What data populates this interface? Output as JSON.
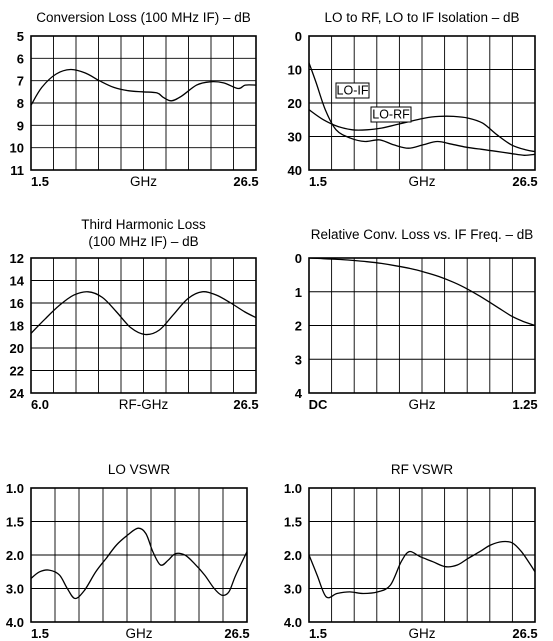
{
  "chart_data": [
    {
      "id": "conv-loss",
      "type": "line",
      "title": [
        "Conversion Loss (100 MHz IF) – dB"
      ],
      "x_tick_labels": [
        "1.5",
        "GHz",
        "26.5"
      ],
      "y_tick_labels": [
        "5",
        "6",
        "7",
        "8",
        "9",
        "10",
        "11"
      ],
      "xlim": [
        1.5,
        26.5
      ],
      "ylim": [
        5,
        11
      ],
      "y_inverted": true,
      "grid": true,
      "series": [
        {
          "x": [
            1.5,
            2.7,
            4.3,
            5.9,
            7.5,
            9.1,
            10.7,
            12.3,
            13.9,
            15.5,
            16.2,
            17.1,
            18.2,
            19.9,
            21.4,
            22.9,
            24.5,
            25.3,
            26.5
          ],
          "y": [
            8.1,
            7.3,
            6.7,
            6.5,
            6.65,
            7.0,
            7.3,
            7.45,
            7.5,
            7.55,
            7.75,
            7.9,
            7.7,
            7.2,
            7.05,
            7.1,
            7.35,
            7.2,
            7.2
          ]
        }
      ]
    },
    {
      "id": "isolation",
      "type": "line",
      "title": [
        "LO to RF, LO to IF Isolation – dB"
      ],
      "x_tick_labels": [
        "1.5",
        "GHz",
        "26.5"
      ],
      "y_tick_labels": [
        "0",
        "10",
        "20",
        "30",
        "40"
      ],
      "xlim": [
        1.5,
        26.5
      ],
      "ylim": [
        0,
        40
      ],
      "y_inverted": true,
      "grid": true,
      "annotations": [
        "LO-IF",
        "LO-RF"
      ],
      "series": [
        {
          "name": "LO-IF",
          "x": [
            1.5,
            2.3,
            3.3,
            4.5,
            6.1,
            7.7,
            9.3,
            10.9,
            12.5,
            14.1,
            15.7,
            17.3,
            18.9,
            20.5,
            22.1,
            23.7,
            25.3,
            26.5
          ],
          "y": [
            8,
            14,
            22,
            28,
            30.5,
            31.5,
            31,
            32.5,
            33.5,
            32.5,
            31.5,
            32.3,
            33.2,
            33.8,
            34.4,
            35,
            35.6,
            35.3
          ]
        },
        {
          "name": "LO-RF",
          "x": [
            1.5,
            3.1,
            4.7,
            6.3,
            7.9,
            9.5,
            11.1,
            12.7,
            14.3,
            15.9,
            17.5,
            19.1,
            20.7,
            22.3,
            23.9,
            25.5,
            26.5
          ],
          "y": [
            22,
            25,
            27,
            28,
            28,
            27.5,
            26.5,
            25.5,
            24.5,
            24,
            24,
            24.5,
            26,
            29.5,
            32.5,
            34,
            34.5
          ]
        }
      ]
    },
    {
      "id": "third-harmonic",
      "type": "line",
      "title": [
        "Third Harmonic Loss",
        "(100 MHz IF) – dB"
      ],
      "x_tick_labels": [
        "6.0",
        "RF-GHz",
        "26.5"
      ],
      "y_tick_labels": [
        "12",
        "14",
        "16",
        "18",
        "20",
        "22",
        "24"
      ],
      "xlim": [
        6.0,
        26.5
      ],
      "ylim": [
        12,
        24
      ],
      "y_inverted": true,
      "grid": true,
      "series": [
        {
          "x": [
            6.0,
            7.3,
            8.6,
            9.9,
            11.2,
            12.5,
            13.8,
            15.1,
            16.4,
            17.7,
            19.0,
            20.3,
            21.6,
            22.9,
            24.2,
            25.5,
            26.5
          ],
          "y": [
            18.7,
            17.4,
            16.2,
            15.3,
            15.0,
            15.5,
            16.8,
            18.2,
            18.8,
            18.4,
            17.0,
            15.6,
            15.0,
            15.3,
            16.0,
            16.8,
            17.3
          ]
        }
      ]
    },
    {
      "id": "rel-conv-loss",
      "type": "line",
      "title": [
        "Relative Conv. Loss vs. IF Freq. – dB"
      ],
      "x_tick_labels": [
        "DC",
        "GHz",
        "1.25"
      ],
      "y_tick_labels": [
        "0",
        "1",
        "2",
        "3",
        "4"
      ],
      "xlim": [
        0,
        1.25
      ],
      "ylim": [
        0,
        4
      ],
      "y_inverted": true,
      "grid": true,
      "series": [
        {
          "x": [
            0,
            0.08,
            0.16,
            0.24,
            0.32,
            0.4,
            0.48,
            0.56,
            0.64,
            0.72,
            0.8,
            0.88,
            0.96,
            1.04,
            1.12,
            1.18,
            1.25
          ],
          "y": [
            0.0,
            0.02,
            0.04,
            0.07,
            0.11,
            0.16,
            0.23,
            0.31,
            0.42,
            0.55,
            0.72,
            0.93,
            1.18,
            1.45,
            1.72,
            1.87,
            2.0
          ]
        }
      ]
    },
    {
      "id": "lo-vswr",
      "type": "line",
      "title": [
        "LO VSWR"
      ],
      "x_tick_labels": [
        "1.5",
        "GHz",
        "26.5"
      ],
      "y_tick_labels": [
        "1.0",
        "1.5",
        "2.0",
        "3.0",
        "4.0"
      ],
      "xlim": [
        1.5,
        26.5
      ],
      "ylim": [
        1.0,
        4.0
      ],
      "y_scale": "vswr",
      "y_inverted": true,
      "grid": true,
      "series": [
        {
          "x": [
            1.5,
            2.5,
            3.6,
            4.8,
            5.7,
            6.6,
            7.7,
            9.0,
            10.2,
            11.4,
            12.7,
            13.9,
            14.8,
            15.6,
            16.5,
            17.4,
            18.2,
            19.3,
            20.4,
            21.6,
            22.7,
            23.6,
            24.4,
            25.2,
            26.5
          ],
          "y": [
            2.7,
            2.5,
            2.45,
            2.6,
            3.0,
            3.3,
            3.05,
            2.5,
            2.1,
            1.85,
            1.7,
            1.6,
            1.68,
            1.95,
            2.3,
            2.15,
            1.98,
            2.0,
            2.25,
            2.6,
            3.0,
            3.2,
            3.1,
            2.6,
            1.95
          ]
        }
      ]
    },
    {
      "id": "rf-vswr",
      "type": "line",
      "title": [
        "RF VSWR"
      ],
      "x_tick_labels": [
        "1.5",
        "GHz",
        "26.5"
      ],
      "y_tick_labels": [
        "1.0",
        "1.5",
        "2.0",
        "3.0",
        "4.0"
      ],
      "xlim": [
        1.5,
        26.5
      ],
      "ylim": [
        1.0,
        4.0
      ],
      "y_scale": "vswr",
      "y_inverted": true,
      "grid": true,
      "series": [
        {
          "x": [
            1.5,
            2.4,
            3.4,
            4.6,
            6.0,
            7.5,
            9.1,
            10.5,
            11.7,
            12.6,
            13.8,
            15.2,
            16.6,
            17.9,
            19.1,
            20.4,
            21.6,
            22.9,
            24.0,
            25.0,
            25.9,
            26.5
          ],
          "y": [
            2.0,
            2.6,
            3.25,
            3.15,
            3.1,
            3.15,
            3.1,
            2.9,
            2.2,
            1.95,
            2.05,
            2.2,
            2.35,
            2.3,
            2.1,
            1.95,
            1.85,
            1.8,
            1.82,
            1.95,
            2.25,
            2.5
          ]
        }
      ]
    }
  ]
}
